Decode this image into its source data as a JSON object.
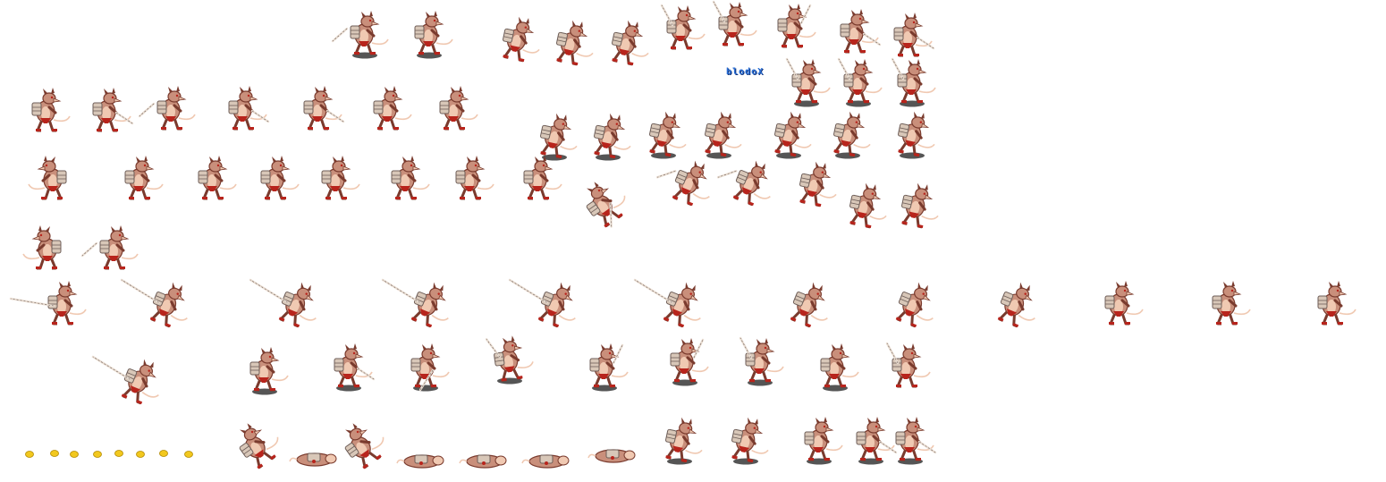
{
  "sheet": {
    "credit_text": "blodoX",
    "background": "#ffffff",
    "palette": {
      "fur": "#c98f7b",
      "fur_dark": "#7a3b2e",
      "fur_light": "#f0c9b2",
      "cloth": "#b8241c",
      "armor": "#d8c7b8",
      "armor_dark": "#6e5e58",
      "blade": "#e9ddd2",
      "shadow": "#555555",
      "coin": "#f2c81e",
      "credit": "#2a6fd6"
    },
    "rows": [
      {
        "name": "idle-and-attack-top",
        "frames": 13
      },
      {
        "name": "block-and-ready",
        "frames": 17
      },
      {
        "name": "walk-cycle-and-hit",
        "frames": 15
      },
      {
        "name": "turn",
        "frames": 2
      },
      {
        "name": "sword-thrust",
        "frames": 12
      },
      {
        "name": "sword-swing",
        "frames": 10
      },
      {
        "name": "knockdown-and-recover",
        "frames": 12
      }
    ],
    "coins": 8
  }
}
